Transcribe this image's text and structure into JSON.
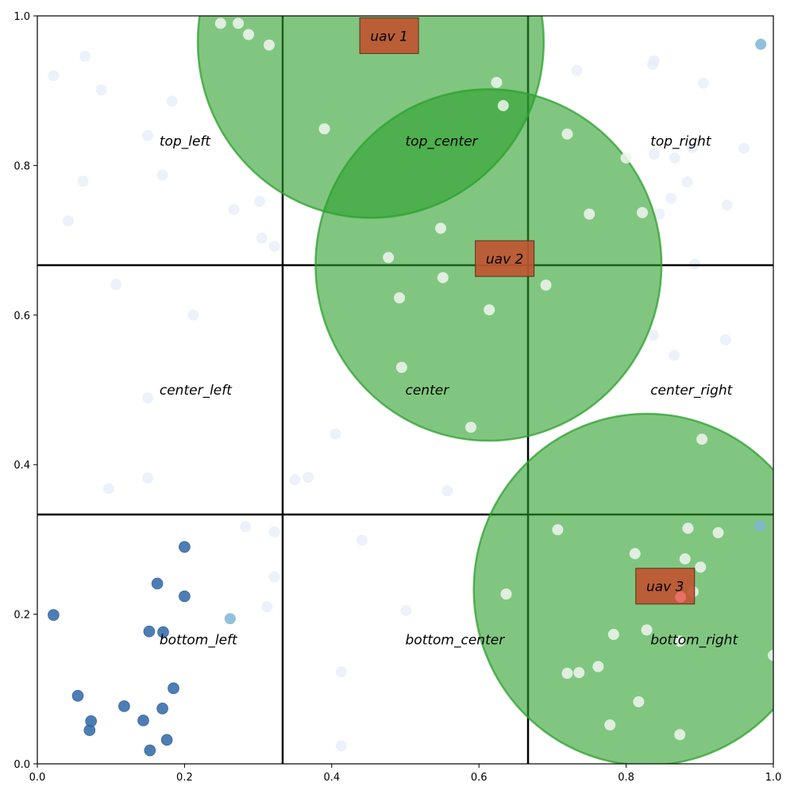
{
  "chart_data": {
    "type": "scatter",
    "title": "",
    "xlabel": "",
    "ylabel": "",
    "xlim": [
      0,
      1
    ],
    "ylim": [
      0,
      1
    ],
    "x_ticks": [
      "0.0",
      "0.2",
      "0.4",
      "0.6",
      "0.8",
      "1.0"
    ],
    "y_ticks": [
      "0.0",
      "0.2",
      "0.4",
      "0.6",
      "0.8",
      "1.0"
    ],
    "grid": false,
    "legend": "none",
    "colors": {
      "coverage_fill": "#2ca02c",
      "coverage_edge": "#2ca02c",
      "uav_box": "#c0522f",
      "point_dark": "#3a6fad",
      "point_light": "#e8eef8",
      "point_white": "#f0f4ee",
      "point_cyan": "#7fb5d5",
      "point_red": "#f07070"
    },
    "grid_divisions": [
      0.3333,
      0.6667
    ],
    "regions": [
      {
        "label": "top_left",
        "x": 0.166,
        "y": 0.833
      },
      {
        "label": "top_center",
        "x": 0.5,
        "y": 0.833
      },
      {
        "label": "top_right",
        "x": 0.833,
        "y": 0.833
      },
      {
        "label": "center_left",
        "x": 0.166,
        "y": 0.5
      },
      {
        "label": "center",
        "x": 0.5,
        "y": 0.5
      },
      {
        "label": "center_right",
        "x": 0.833,
        "y": 0.5
      },
      {
        "label": "bottom_left",
        "x": 0.166,
        "y": 0.166
      },
      {
        "label": "bottom_center",
        "x": 0.5,
        "y": 0.166
      },
      {
        "label": "bottom_right",
        "x": 0.833,
        "y": 0.166
      }
    ],
    "uavs": [
      {
        "label": "uav 1",
        "x": 0.478,
        "y": 0.973,
        "radius": 0.235
      },
      {
        "label": "uav 2",
        "x": 0.635,
        "y": 0.675,
        "radius": 0.235
      },
      {
        "label": "uav 3",
        "x": 0.853,
        "y": 0.237,
        "radius": 0.235
      }
    ],
    "coverage_circles": [
      {
        "cx": 0.453,
        "cy": 0.965,
        "r": 0.235
      },
      {
        "cx": 0.613,
        "cy": 0.667,
        "r": 0.235
      },
      {
        "cx": 0.828,
        "cy": 0.233,
        "r": 0.235
      }
    ],
    "points_dark": [
      [
        0.022,
        0.199
      ],
      [
        0.055,
        0.091
      ],
      [
        0.071,
        0.045
      ],
      [
        0.073,
        0.057
      ],
      [
        0.118,
        0.077
      ],
      [
        0.144,
        0.058
      ],
      [
        0.153,
        0.018
      ],
      [
        0.152,
        0.177
      ],
      [
        0.163,
        0.241
      ],
      [
        0.171,
        0.176
      ],
      [
        0.17,
        0.074
      ],
      [
        0.176,
        0.032
      ],
      [
        0.185,
        0.101
      ],
      [
        0.2,
        0.29
      ],
      [
        0.2,
        0.224
      ]
    ],
    "points_cyan": [
      [
        0.262,
        0.194
      ],
      [
        0.983,
        0.962
      ],
      [
        0.982,
        0.318
      ]
    ],
    "points_red": [
      [
        0.874,
        0.223
      ]
    ],
    "points_white": [
      [
        0.249,
        0.99
      ],
      [
        0.273,
        0.99
      ],
      [
        0.287,
        0.975
      ],
      [
        0.315,
        0.961
      ],
      [
        0.39,
        0.849
      ],
      [
        0.624,
        0.911
      ],
      [
        0.633,
        0.88
      ],
      [
        0.72,
        0.842
      ],
      [
        0.75,
        0.735
      ],
      [
        0.822,
        0.737
      ],
      [
        0.548,
        0.716
      ],
      [
        0.477,
        0.677
      ],
      [
        0.551,
        0.65
      ],
      [
        0.691,
        0.64
      ],
      [
        0.492,
        0.623
      ],
      [
        0.614,
        0.607
      ],
      [
        0.495,
        0.53
      ],
      [
        0.589,
        0.45
      ],
      [
        0.903,
        0.434
      ],
      [
        0.707,
        0.313
      ],
      [
        0.884,
        0.315
      ],
      [
        0.925,
        0.309
      ],
      [
        0.812,
        0.281
      ],
      [
        0.88,
        0.274
      ],
      [
        0.901,
        0.263
      ],
      [
        0.891,
        0.23
      ],
      [
        0.637,
        0.227
      ],
      [
        0.783,
        0.173
      ],
      [
        0.828,
        0.179
      ],
      [
        0.873,
        0.164
      ],
      [
        0.762,
        0.13
      ],
      [
        0.72,
        0.121
      ],
      [
        0.736,
        0.122
      ],
      [
        0.817,
        0.083
      ],
      [
        0.778,
        0.052
      ],
      [
        0.873,
        0.039
      ],
      [
        1.0,
        0.145
      ],
      [
        0.8,
        0.81
      ]
    ],
    "points_light": [
      [
        0.022,
        0.92
      ],
      [
        0.065,
        0.946
      ],
      [
        0.087,
        0.901
      ],
      [
        0.183,
        0.886
      ],
      [
        0.15,
        0.84
      ],
      [
        0.062,
        0.779
      ],
      [
        0.17,
        0.787
      ],
      [
        0.042,
        0.726
      ],
      [
        0.267,
        0.741
      ],
      [
        0.302,
        0.752
      ],
      [
        0.305,
        0.703
      ],
      [
        0.322,
        0.692
      ],
      [
        0.107,
        0.641
      ],
      [
        0.212,
        0.6
      ],
      [
        0.15,
        0.489
      ],
      [
        0.15,
        0.382
      ],
      [
        0.097,
        0.368
      ],
      [
        0.35,
        0.38
      ],
      [
        0.368,
        0.383
      ],
      [
        0.405,
        0.441
      ],
      [
        0.557,
        0.365
      ],
      [
        0.283,
        0.317
      ],
      [
        0.322,
        0.31
      ],
      [
        0.441,
        0.299
      ],
      [
        0.322,
        0.25
      ],
      [
        0.312,
        0.21
      ],
      [
        0.501,
        0.205
      ],
      [
        0.413,
        0.123
      ],
      [
        0.413,
        0.024
      ],
      [
        0.733,
        0.927
      ],
      [
        0.836,
        0.935
      ],
      [
        0.838,
        0.94
      ],
      [
        0.905,
        0.91
      ],
      [
        0.89,
        0.824
      ],
      [
        0.866,
        0.81
      ],
      [
        0.96,
        0.823
      ],
      [
        0.883,
        0.778
      ],
      [
        0.861,
        0.756
      ],
      [
        0.845,
        0.735
      ],
      [
        0.937,
        0.747
      ],
      [
        0.893,
        0.668
      ],
      [
        0.837,
        0.573
      ],
      [
        0.865,
        0.546
      ],
      [
        0.935,
        0.567
      ],
      [
        0.838,
        0.815
      ]
    ]
  }
}
